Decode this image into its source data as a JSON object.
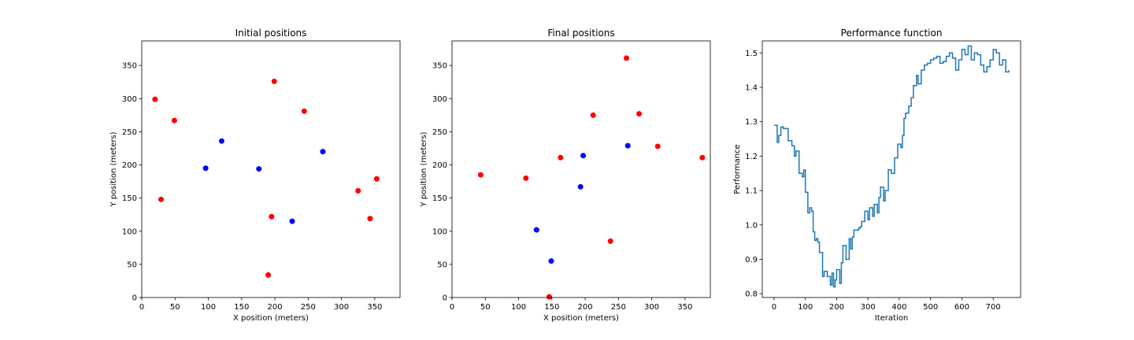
{
  "chart_data": [
    {
      "type": "scatter",
      "title": "Initial positions",
      "xlabel": "X position (meters)",
      "ylabel": "Y position (meters)",
      "xlim": [
        0,
        388
      ],
      "ylim": [
        0,
        387
      ],
      "xticks": [
        0,
        50,
        100,
        150,
        200,
        250,
        300,
        350
      ],
      "yticks": [
        0,
        50,
        100,
        150,
        200,
        250,
        300,
        350
      ],
      "series": [
        {
          "color": "#ff0000",
          "x": [
            20,
            49,
            29,
            199,
            244,
            195,
            190,
            325,
            353,
            343
          ],
          "y": [
            299,
            267,
            148,
            326,
            281,
            122,
            34,
            161,
            179,
            119
          ]
        },
        {
          "color": "#0000ff",
          "x": [
            96,
            120,
            176,
            226,
            272
          ],
          "y": [
            195,
            236,
            194,
            115,
            220
          ]
        }
      ]
    },
    {
      "type": "scatter",
      "title": "Final positions",
      "xlabel": "X position (meters)",
      "ylabel": "Y position (meters)",
      "xlim": [
        0,
        388
      ],
      "ylim": [
        0,
        387
      ],
      "xticks": [
        0,
        50,
        100,
        150,
        200,
        250,
        300,
        350
      ],
      "yticks": [
        0,
        50,
        100,
        150,
        200,
        250,
        300,
        350
      ],
      "series": [
        {
          "color": "#ff0000",
          "x": [
            43,
            111,
            163,
            212,
            262,
            281,
            309,
            376,
            238,
            146
          ],
          "y": [
            185,
            180,
            211,
            275,
            361,
            277,
            228,
            211,
            85,
            1
          ]
        },
        {
          "color": "#0000ff",
          "x": [
            197,
            264,
            193,
            127,
            149
          ],
          "y": [
            214,
            229,
            167,
            102,
            55
          ]
        }
      ]
    },
    {
      "type": "line",
      "title": "Performance function",
      "xlabel": "Iteration",
      "ylabel": "Performance",
      "xlim": [
        -37.5,
        787.5
      ],
      "ylim": [
        0.789,
        1.535
      ],
      "xticks": [
        0,
        100,
        200,
        300,
        400,
        500,
        600,
        700
      ],
      "yticks": [
        0.8,
        0.9,
        1.0,
        1.1,
        1.2,
        1.3,
        1.4,
        1.5
      ],
      "ytick_labels": [
        "0.8",
        "0.9",
        "1.0",
        "1.1",
        "1.2",
        "1.3",
        "1.4",
        "1.5"
      ],
      "series": [
        {
          "color": "#1f77b4",
          "x": [
            0,
            10,
            15,
            22,
            30,
            45,
            57,
            65,
            70,
            80,
            90,
            95,
            100,
            108,
            114,
            120,
            125,
            130,
            135,
            140,
            145,
            155,
            160,
            170,
            180,
            185,
            190,
            195,
            200,
            210,
            215,
            220,
            230,
            240,
            245,
            250,
            255,
            270,
            275,
            280,
            290,
            300,
            305,
            315,
            320,
            330,
            335,
            340,
            350,
            355,
            365,
            375,
            385,
            395,
            405,
            410,
            415,
            420,
            430,
            438,
            445,
            455,
            460,
            470,
            480,
            490,
            500,
            510,
            520,
            530,
            540,
            550,
            560,
            570,
            580,
            590,
            600,
            610,
            620,
            630,
            640,
            650,
            660,
            670,
            680,
            690,
            700,
            710,
            720,
            730,
            740,
            750
          ],
          "y": [
            1.29,
            1.24,
            1.26,
            1.285,
            1.28,
            1.245,
            1.23,
            1.2,
            1.215,
            1.15,
            1.14,
            1.16,
            1.095,
            1.035,
            1.05,
            1.04,
            0.98,
            0.955,
            0.96,
            0.95,
            0.92,
            0.85,
            0.865,
            0.85,
            0.825,
            0.86,
            0.82,
            0.84,
            0.87,
            0.83,
            0.89,
            0.94,
            0.9,
            0.96,
            0.93,
            0.965,
            0.985,
            0.99,
            0.995,
            1.01,
            1.04,
            1.015,
            1.05,
            1.025,
            1.06,
            1.035,
            1.08,
            1.11,
            1.07,
            1.1,
            1.16,
            1.15,
            1.195,
            1.235,
            1.225,
            1.26,
            1.31,
            1.325,
            1.345,
            1.37,
            1.405,
            1.435,
            1.41,
            1.45,
            1.465,
            1.47,
            1.48,
            1.485,
            1.49,
            1.47,
            1.475,
            1.49,
            1.5,
            1.485,
            1.45,
            1.48,
            1.51,
            1.495,
            1.52,
            1.48,
            1.5,
            1.495,
            1.465,
            1.445,
            1.46,
            1.48,
            1.51,
            1.5,
            1.465,
            1.48,
            1.445,
            1.45
          ]
        }
      ]
    }
  ]
}
